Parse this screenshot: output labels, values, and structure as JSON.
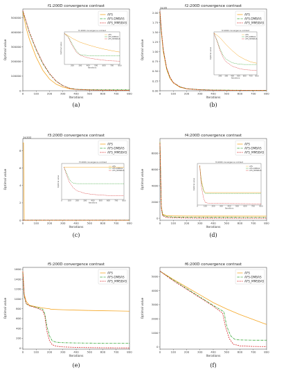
{
  "colors": {
    "AFS": "#f5a623",
    "AFS-DMBAS": "#2ca02c",
    "AFS_MMSBAS": "#d62728"
  },
  "chart_data": [
    {
      "type": "line",
      "title": "f1:200D convergence contrast",
      "caption": "(a)",
      "xlabel": "Iterations",
      "ylabel": "Optimal value",
      "xlim": [
        0,
        800
      ],
      "ylim": [
        0,
        560000
      ],
      "xticks": [
        0,
        100,
        200,
        300,
        400,
        500,
        600,
        700,
        800
      ],
      "yticks": [
        0,
        100000,
        200000,
        300000,
        400000,
        500000
      ],
      "ytick_labels": [
        "0",
        "100000",
        "200000",
        "300000",
        "400000",
        "500000"
      ],
      "legend": "top-right",
      "series": [
        {
          "name": "AFS",
          "x": [
            0,
            25,
            50,
            100,
            150,
            200,
            250,
            300,
            350,
            400,
            500,
            600,
            700,
            800
          ],
          "y": [
            540000,
            430000,
            350000,
            230000,
            140000,
            80000,
            45000,
            25000,
            14000,
            9000,
            6000,
            4500,
            4000,
            3500
          ]
        },
        {
          "name": "AFS-DMBAS",
          "x": [
            0,
            25,
            50,
            100,
            150,
            200,
            250,
            300,
            350,
            400,
            500,
            600,
            700,
            800
          ],
          "y": [
            545000,
            470000,
            395000,
            280000,
            185000,
            115000,
            65000,
            35000,
            18000,
            10000,
            7000,
            6500,
            6500,
            6500
          ]
        },
        {
          "name": "AFS_MMSBAS",
          "x": [
            0,
            25,
            50,
            100,
            150,
            200,
            250,
            300,
            350,
            400,
            500,
            600,
            700,
            800
          ],
          "y": [
            548000,
            475000,
            400000,
            285000,
            190000,
            118000,
            66000,
            35000,
            17000,
            9000,
            5000,
            3500,
            3000,
            2800
          ]
        }
      ],
      "inset": {
        "title": "f1:200D convergence contrast",
        "xlabel": "Iterations",
        "ylabel": "Optimal value",
        "xlim": [
          100,
          800
        ],
        "ylim": [
          0,
          1
        ],
        "xticks": [
          200,
          300,
          400,
          500,
          600,
          700,
          800
        ],
        "series": [
          {
            "name": "AFS",
            "x": [
              100,
              150,
              200,
              250,
              300,
              400,
              500,
              600,
              700,
              800
            ],
            "y": [
              0.95,
              0.88,
              0.8,
              0.74,
              0.68,
              0.6,
              0.53,
              0.47,
              0.42,
              0.38
            ]
          },
          {
            "name": "AFS-DMBAS",
            "x": [
              100,
              150,
              200,
              250,
              280,
              300,
              400,
              500,
              600,
              700,
              800
            ],
            "y": [
              0.95,
              0.85,
              0.62,
              0.42,
              0.34,
              0.3,
              0.27,
              0.26,
              0.26,
              0.26,
              0.26
            ]
          },
          {
            "name": "AFS_MMSBAS",
            "x": [
              100,
              150,
              200,
              250,
              300,
              400,
              500,
              600,
              700,
              800
            ],
            "y": [
              0.95,
              0.83,
              0.58,
              0.38,
              0.28,
              0.2,
              0.16,
              0.13,
              0.11,
              0.1
            ]
          }
        ]
      }
    },
    {
      "type": "line",
      "title": "f2:200D convergence contrast",
      "caption": "(b)",
      "xlabel": "Iterations",
      "ylabel": "Optimal value",
      "offset_label": "1e16",
      "xlim": [
        0,
        800
      ],
      "ylim": [
        0,
        2.1
      ],
      "xticks": [
        0,
        100,
        200,
        300,
        400,
        500,
        600,
        700,
        800
      ],
      "yticks": [
        0,
        0.25,
        0.5,
        0.75,
        1.0,
        1.25,
        1.5,
        1.75,
        2.0
      ],
      "ytick_labels": [
        "0.00",
        "0.25",
        "0.50",
        "0.75",
        "1.00",
        "1.25",
        "1.50",
        "1.75",
        "2.00"
      ],
      "legend": "top-right",
      "series": [
        {
          "name": "AFS",
          "x": [
            0,
            10,
            25,
            50,
            75,
            100,
            150,
            200,
            300,
            400,
            600,
            800
          ],
          "y": [
            2.02,
            1.5,
            1.0,
            0.55,
            0.32,
            0.2,
            0.09,
            0.05,
            0.025,
            0.015,
            0.01,
            0.008
          ]
        },
        {
          "name": "AFS-DMBAS",
          "x": [
            0,
            10,
            25,
            50,
            75,
            100,
            150,
            200,
            300,
            400,
            600,
            800
          ],
          "y": [
            2.03,
            1.55,
            1.05,
            0.58,
            0.34,
            0.21,
            0.1,
            0.055,
            0.028,
            0.018,
            0.012,
            0.01
          ]
        },
        {
          "name": "AFS_MMSBAS",
          "x": [
            0,
            10,
            25,
            50,
            75,
            100,
            150,
            200,
            300,
            400,
            600,
            800
          ],
          "y": [
            2.04,
            1.56,
            1.06,
            0.59,
            0.35,
            0.21,
            0.1,
            0.052,
            0.024,
            0.014,
            0.008,
            0.006
          ]
        }
      ],
      "inset": {
        "title": "f2:200D convergence contrast",
        "xlabel": "Iterations",
        "ylabel": "Optimal value",
        "xlim": [
          100,
          800
        ],
        "ylim": [
          0,
          1
        ],
        "xticks": [
          200,
          300,
          400,
          500,
          600,
          700,
          800
        ],
        "series": [
          {
            "name": "AFS",
            "x": [
              100,
              150,
              200,
              250,
              300,
              400,
              500,
              600,
              700,
              800
            ],
            "y": [
              0.97,
              0.92,
              0.86,
              0.78,
              0.7,
              0.56,
              0.44,
              0.36,
              0.3,
              0.27
            ]
          },
          {
            "name": "AFS-DMBAS",
            "x": [
              100,
              150,
              200,
              250,
              300,
              400,
              500,
              600,
              700,
              800
            ],
            "y": [
              0.97,
              0.8,
              0.6,
              0.45,
              0.36,
              0.28,
              0.25,
              0.24,
              0.24,
              0.24
            ]
          },
          {
            "name": "AFS_MMSBAS",
            "x": [
              100,
              150,
              200,
              250,
              300,
              400,
              500,
              600,
              700,
              800
            ],
            "y": [
              0.97,
              0.78,
              0.56,
              0.4,
              0.3,
              0.2,
              0.15,
              0.12,
              0.11,
              0.1
            ]
          }
        ]
      }
    },
    {
      "type": "line",
      "title": "f3:200D convergence contrast",
      "caption": "(c)",
      "xlabel": "Iterations",
      "ylabel": "Optimal value",
      "offset_label": "1e102",
      "xlim": [
        0,
        800
      ],
      "ylim": [
        0,
        9.4
      ],
      "xticks": [
        0,
        100,
        200,
        300,
        400,
        500,
        600,
        700,
        800
      ],
      "yticks": [
        0,
        2,
        4,
        6,
        8
      ],
      "ytick_labels": [
        "0",
        "2",
        "4",
        "6",
        "8"
      ],
      "legend": "top-right",
      "series": [
        {
          "name": "AFS",
          "x": [
            0,
            5,
            10,
            800
          ],
          "y": [
            8.9,
            8.9,
            0,
            0
          ]
        },
        {
          "name": "AFS-DMBAS",
          "x": [
            0,
            5,
            10,
            800
          ],
          "y": [
            0.02,
            0.02,
            0.02,
            0.02
          ]
        },
        {
          "name": "AFS_MMSBAS",
          "x": [
            0,
            5,
            10,
            800
          ],
          "y": [
            0.01,
            0.01,
            0.01,
            0.01
          ]
        }
      ],
      "inset": {
        "title": "f3:200D convergence contrast",
        "xlabel": "Iterations",
        "ylabel": "Optimal value",
        "xlim": [
          0,
          800
        ],
        "ylim": [
          0,
          1
        ],
        "xticks": [
          0,
          100,
          200,
          300,
          400,
          500,
          600,
          700,
          800
        ],
        "series": [
          {
            "name": "AFS",
            "x": [
              30,
              800
            ],
            "y": [
              0.9,
              0.9
            ]
          },
          {
            "name": "AFS-DMBAS",
            "x": [
              30,
              60,
              90,
              120,
              150,
              200,
              800
            ],
            "y": [
              0.9,
              0.75,
              0.6,
              0.5,
              0.45,
              0.44,
              0.44
            ]
          },
          {
            "name": "AFS_MMSBAS",
            "x": [
              30,
              60,
              100,
              150,
              200,
              300,
              400,
              600,
              800
            ],
            "y": [
              0.9,
              0.7,
              0.48,
              0.32,
              0.24,
              0.17,
              0.14,
              0.11,
              0.1
            ]
          }
        ]
      }
    },
    {
      "type": "line",
      "title": "f4:200D convergence contrast",
      "caption": "(d)",
      "xlabel": "Iterations",
      "ylabel": "Optimal value",
      "xlim": [
        0,
        800
      ],
      "ylim": [
        -250,
        9800
      ],
      "xticks": [
        0,
        100,
        200,
        300,
        400,
        500,
        600,
        700,
        800
      ],
      "yticks": [
        0,
        2000,
        4000,
        6000,
        8000
      ],
      "ytick_labels": [
        "0",
        "2000",
        "4000",
        "6000",
        "8000"
      ],
      "legend": "top-right",
      "series": [
        {
          "name": "AFS",
          "x": [
            0,
            10,
            20,
            50,
            100,
            200,
            300,
            800
          ],
          "y": [
            9400,
            1500,
            500,
            300,
            280,
            270,
            265,
            260
          ]
        },
        {
          "name": "AFS-DMBAS",
          "x": [
            0,
            10,
            20,
            50,
            100,
            200,
            300,
            800
          ],
          "y": [
            9300,
            1400,
            400,
            200,
            150,
            120,
            110,
            100
          ]
        },
        {
          "name": "AFS_MMSBAS",
          "x": [
            0,
            10,
            20,
            50,
            100,
            200,
            300,
            800
          ],
          "y": [
            9200,
            1300,
            300,
            100,
            50,
            20,
            10,
            5
          ]
        }
      ],
      "inset": {
        "title": "f4:200D convergence contrast",
        "xlabel": "Iterations",
        "ylabel": "Optimal value",
        "xlim": [
          0,
          800
        ],
        "ylim": [
          0,
          1
        ],
        "xticks": [
          0,
          100,
          200,
          300,
          400,
          500,
          600,
          700,
          800
        ],
        "series": [
          {
            "name": "AFS",
            "x": [
              30,
              50,
              80,
              100,
              800
            ],
            "y": [
              0.95,
              0.6,
              0.35,
              0.3,
              0.3
            ]
          },
          {
            "name": "AFS-DMBAS",
            "x": [
              30,
              50,
              80,
              100,
              800
            ],
            "y": [
              0.95,
              0.55,
              0.33,
              0.28,
              0.28
            ]
          },
          {
            "name": "AFS_MMSBAS",
            "x": [
              30,
              50,
              80,
              100,
              150,
              800
            ],
            "y": [
              0.95,
              0.45,
              0.15,
              0.06,
              0.04,
              0.03
            ]
          }
        ]
      }
    },
    {
      "type": "line",
      "title": "f5:200D convergence contrast",
      "caption": "(e)",
      "xlabel": "Iterations",
      "ylabel": "Optimal value",
      "xlim": [
        0,
        800
      ],
      "ylim": [
        -20,
        1640
      ],
      "xticks": [
        0,
        100,
        200,
        300,
        400,
        500,
        600,
        700,
        800
      ],
      "yticks": [
        0,
        200,
        400,
        600,
        800,
        1000,
        1200,
        1400,
        1600
      ],
      "ytick_labels": [
        "0",
        "200",
        "400",
        "600",
        "800",
        "1000",
        "1200",
        "1400",
        "1600"
      ],
      "legend": "top-right",
      "series": [
        {
          "name": "AFS",
          "x": [
            0,
            10,
            25,
            50,
            100,
            150,
            200,
            210,
            300,
            400,
            500,
            600,
            700,
            800
          ],
          "y": [
            1560,
            1100,
            950,
            870,
            840,
            815,
            800,
            790,
            780,
            772,
            765,
            760,
            755,
            750
          ]
        },
        {
          "name": "AFS-DMBAS",
          "x": [
            0,
            10,
            25,
            50,
            100,
            150,
            165,
            180,
            200,
            220,
            250,
            300,
            400,
            600,
            800
          ],
          "y": [
            1540,
            1050,
            900,
            860,
            830,
            790,
            700,
            450,
            250,
            150,
            120,
            110,
            105,
            100,
            100
          ]
        },
        {
          "name": "AFS_MMSBAS",
          "x": [
            0,
            10,
            25,
            50,
            100,
            150,
            165,
            180,
            200,
            220,
            250,
            300,
            400,
            600,
            800
          ],
          "y": [
            1550,
            1070,
            910,
            860,
            820,
            760,
            650,
            350,
            150,
            70,
            40,
            25,
            15,
            8,
            5
          ]
        }
      ]
    },
    {
      "type": "line",
      "title": "f6:200D convergence contrast",
      "caption": "(f)",
      "xlabel": "Iterations",
      "ylabel": "Optimal value",
      "xlim": [
        0,
        800
      ],
      "ylim": [
        -150,
        5650
      ],
      "xticks": [
        0,
        100,
        200,
        300,
        400,
        500,
        600,
        700,
        800
      ],
      "yticks": [
        0,
        1000,
        2000,
        3000,
        4000,
        5000
      ],
      "ytick_labels": [
        "0",
        "1000",
        "2000",
        "3000",
        "4000",
        "5000"
      ],
      "legend": "top-right",
      "series": [
        {
          "name": "AFS",
          "x": [
            0,
            100,
            200,
            300,
            400,
            500,
            600,
            700,
            800
          ],
          "y": [
            5380,
            4800,
            4250,
            3700,
            3150,
            2700,
            2300,
            1950,
            1600
          ]
        },
        {
          "name": "AFS-DMBAS",
          "x": [
            0,
            100,
            200,
            300,
            400,
            480,
            500,
            530,
            560,
            600,
            700,
            800
          ],
          "y": [
            5380,
            4750,
            4150,
            3550,
            2950,
            2500,
            1500,
            800,
            550,
            500,
            480,
            480
          ]
        },
        {
          "name": "AFS_MMSBAS",
          "x": [
            0,
            100,
            200,
            300,
            400,
            470,
            490,
            520,
            550,
            600,
            700,
            800
          ],
          "y": [
            5380,
            4700,
            4100,
            3500,
            2900,
            2400,
            1500,
            600,
            200,
            80,
            40,
            30
          ]
        }
      ]
    }
  ]
}
